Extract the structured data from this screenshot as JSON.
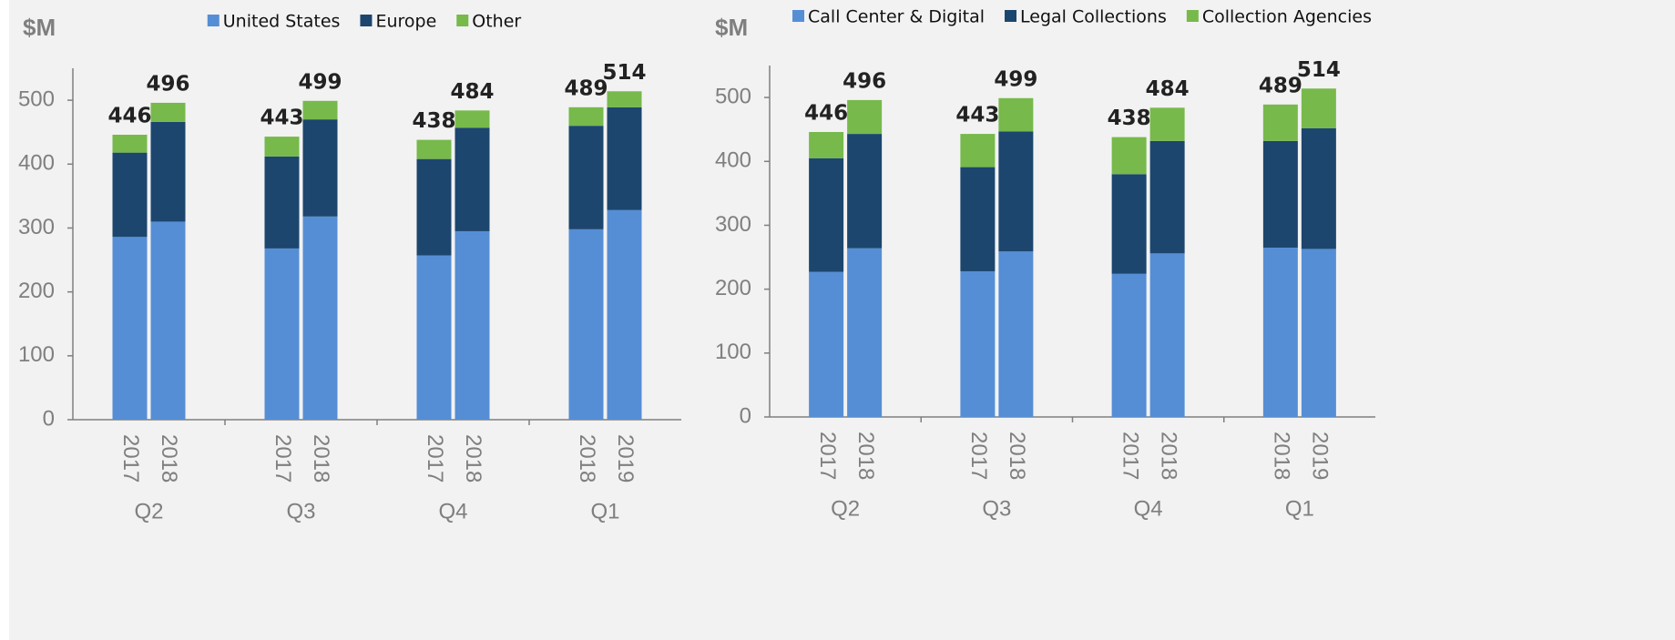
{
  "chart_data": [
    {
      "type": "bar",
      "stacked": true,
      "y_label": "$M",
      "categories": [
        "2017",
        "2018",
        "2017",
        "2018",
        "2017",
        "2018",
        "2018",
        "2019"
      ],
      "groups": [
        "Q2",
        "Q3",
        "Q4",
        "Q1"
      ],
      "series": [
        {
          "name": "United States",
          "color": "#558ed5",
          "values": [
            286,
            310,
            268,
            318,
            257,
            295,
            298,
            328
          ]
        },
        {
          "name": "Europe",
          "color": "#1c466e",
          "values": [
            132,
            156,
            144,
            152,
            151,
            162,
            162,
            161
          ]
        },
        {
          "name": "Other",
          "color": "#77b94b",
          "values": [
            28,
            30,
            31,
            29,
            30,
            27,
            29,
            25
          ]
        }
      ],
      "totals": [
        446,
        496,
        443,
        499,
        438,
        484,
        489,
        514
      ],
      "ylim": [
        0,
        550
      ],
      "yticks": [
        0,
        100,
        200,
        300,
        400,
        500
      ]
    },
    {
      "type": "bar",
      "stacked": true,
      "y_label": "$M",
      "categories": [
        "2017",
        "2018",
        "2017",
        "2018",
        "2017",
        "2018",
        "2018",
        "2019"
      ],
      "groups": [
        "Q2",
        "Q3",
        "Q4",
        "Q1"
      ],
      "series": [
        {
          "name": "Call Center & Digital",
          "color": "#558ed5",
          "values": [
            227,
            264,
            228,
            259,
            224,
            256,
            265,
            263
          ]
        },
        {
          "name": "Legal Collections",
          "color": "#1c466e",
          "values": [
            178,
            179,
            163,
            188,
            156,
            176,
            167,
            189
          ]
        },
        {
          "name": "Collection Agencies",
          "color": "#77b94b",
          "values": [
            41,
            53,
            52,
            52,
            58,
            52,
            57,
            62
          ]
        }
      ],
      "totals": [
        446,
        496,
        443,
        499,
        438,
        484,
        489,
        514
      ],
      "ylim": [
        0,
        550
      ],
      "yticks": [
        0,
        100,
        200,
        300,
        400,
        500
      ]
    }
  ]
}
